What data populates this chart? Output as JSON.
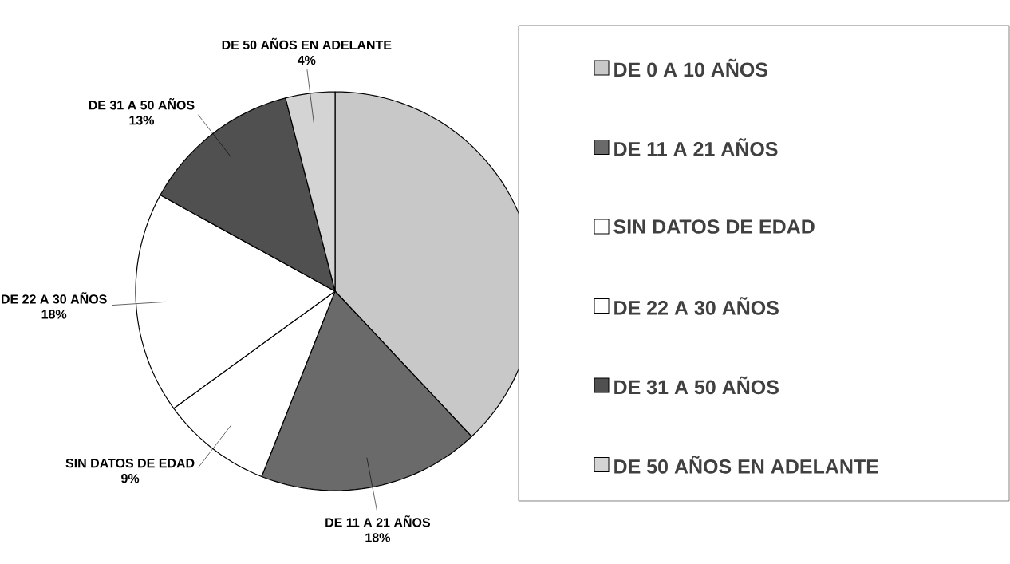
{
  "chart_data": {
    "type": "pie",
    "categories": [
      "DE 0 A 10 AÑOS",
      "DE 11 A 21 AÑOS",
      "SIN DATOS DE EDAD",
      "DE 22 A 30 AÑOS",
      "DE 31 A 50 AÑOS",
      "DE 50 AÑOS EN ADELANTE"
    ],
    "values": [
      38,
      18,
      9,
      18,
      13,
      4
    ],
    "value_labels": [
      null,
      "18%",
      "9%",
      "18%",
      "13%",
      "4%"
    ],
    "colors": [
      "#c8c8c8",
      "#6a6a6a",
      "#ffffff",
      "#ffffff",
      "#505050",
      "#d4d4d4"
    ],
    "legend": "right"
  }
}
